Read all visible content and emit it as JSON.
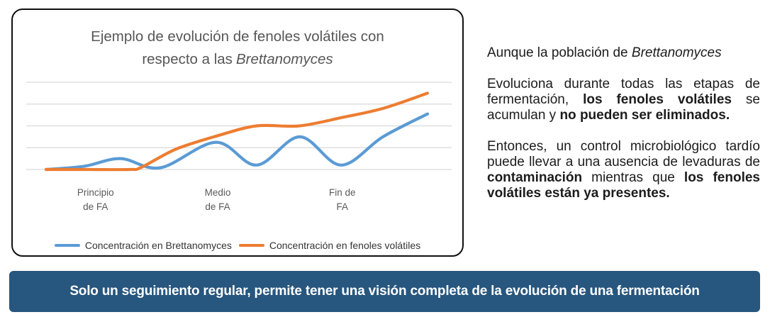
{
  "colors": {
    "brettanomyces_line": "#5b9bd5",
    "fenoles_line": "#ed7d31",
    "gridline": "#d9d9d9",
    "card_border": "#101010",
    "title_text": "#575757",
    "axis_label_text": "#595959",
    "legend_text": "#333333",
    "body_text": "#1c1c1c",
    "banner_bg": "#27567e",
    "banner_text": "#ffffff"
  },
  "chart_card": {
    "title_line1": "Ejemplo de evolución de fenoles volátiles con",
    "title_line2_normal": "respecto a las",
    "title_line2_italic": "Brettanomyces"
  },
  "chart_data": {
    "type": "line",
    "title": "Ejemplo de evolución de fenoles volátiles con respecto a las Brettanomyces",
    "smooth": true,
    "grid": true,
    "legend_position": "bottom",
    "y_axis": {
      "min": 0,
      "max": 4,
      "gridline_count": 5,
      "tick_labels_visible": false
    },
    "x_axis": {
      "labels": [
        {
          "line1": "Principio",
          "line2": "de FA",
          "pos_pct": 16.3
        },
        {
          "line1": "Medio",
          "line2": "de FA",
          "pos_pct": 45.0
        },
        {
          "line1": "Fin de",
          "line2": "FA",
          "pos_pct": 74.3
        }
      ]
    },
    "series": [
      {
        "name": "Concentración en Brettanomyces",
        "color": "#5b9bd5",
        "points": [
          [
            0,
            0
          ],
          [
            10,
            0.15
          ],
          [
            19.5,
            0.5
          ],
          [
            30,
            0.08
          ],
          [
            44.5,
            1.25
          ],
          [
            55.2,
            0.2
          ],
          [
            66.5,
            1.5
          ],
          [
            77.3,
            0.2
          ],
          [
            88.3,
            1.5
          ],
          [
            100,
            2.55
          ]
        ]
      },
      {
        "name": "Concentración en fenoles volátiles",
        "color": "#ed7d31",
        "points": [
          [
            0,
            0
          ],
          [
            11,
            0
          ],
          [
            21.8,
            0
          ],
          [
            25,
            0.1
          ],
          [
            34,
            0.93
          ],
          [
            45,
            1.55
          ],
          [
            55.2,
            2.0
          ],
          [
            66.4,
            2.0
          ],
          [
            78,
            2.4
          ],
          [
            88.3,
            2.8
          ],
          [
            100,
            3.5
          ]
        ]
      }
    ]
  },
  "right_column": {
    "paragraphs": [
      {
        "segments": [
          {
            "t": "Aunque la población de ",
            "s": "normal"
          },
          {
            "t": "Brettanomyces",
            "s": "italic"
          }
        ]
      },
      {
        "segments": [
          {
            "t": "Evoluciona durante todas las etapas de fermentación, ",
            "s": "normal"
          },
          {
            "t": "los fenoles volátiles",
            "s": "bold"
          },
          {
            "t": " se acumulan y ",
            "s": "normal"
          },
          {
            "t": "no pueden ser eliminados.",
            "s": "bold"
          }
        ]
      },
      {
        "segments": [
          {
            "t": "Entonces, un control microbiológico tardío puede llevar a una ausencia de levaduras de ",
            "s": "normal"
          },
          {
            "t": "contaminación",
            "s": "bold"
          },
          {
            "t": " mientras que ",
            "s": "normal"
          },
          {
            "t": "los fenoles volátiles están ya presentes.",
            "s": "bold"
          }
        ]
      }
    ]
  },
  "banner": {
    "text": "Solo un seguimiento regular, permite tener una visión completa de la evolución de una fermentación"
  }
}
